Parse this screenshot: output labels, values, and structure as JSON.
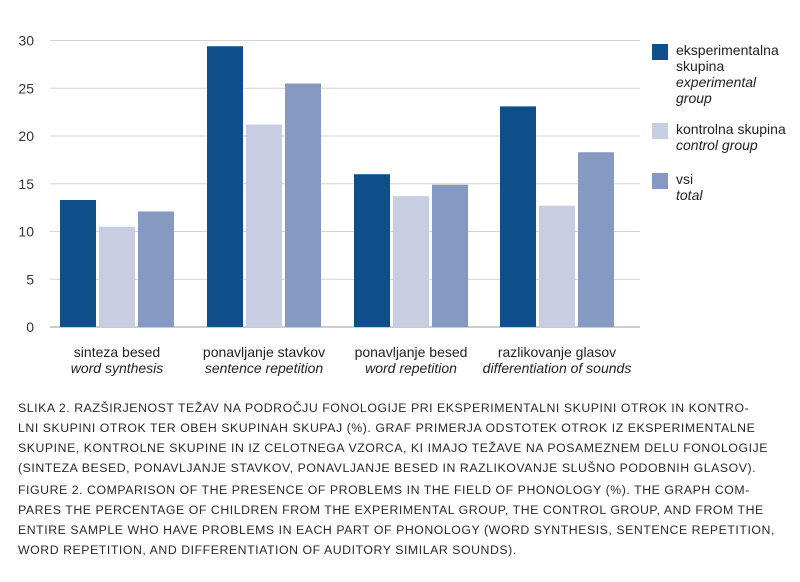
{
  "chart_data": {
    "type": "bar",
    "categories": [
      {
        "sl": "sinteza besed",
        "en": "word synthesis"
      },
      {
        "sl": "ponavljanje stavkov",
        "en": "sentence repetition"
      },
      {
        "sl": "ponavljanje besed",
        "en": "word repetition"
      },
      {
        "sl": "razlikovanje glasov",
        "en": "differentiation of sounds"
      }
    ],
    "series": [
      {
        "name_lines": [
          "eksperimentalna",
          "skupina"
        ],
        "name_en_lines": [
          "experimental",
          "group"
        ],
        "color": "#0e4f8a",
        "values": [
          13.3,
          29.4,
          16.0,
          23.1
        ]
      },
      {
        "name_lines": [
          "kontrolna skupina"
        ],
        "name_en_lines": [
          "control group"
        ],
        "color": "#c7cee2",
        "values": [
          10.5,
          21.2,
          13.7,
          12.7
        ]
      },
      {
        "name_lines": [
          "vsi"
        ],
        "name_en_lines": [
          "total"
        ],
        "color": "#8599c3",
        "values": [
          12.1,
          25.5,
          14.9,
          18.3
        ]
      }
    ],
    "yticks": [
      0,
      5,
      10,
      15,
      20,
      25,
      30
    ],
    "ylim": [
      0,
      32
    ],
    "grid": true,
    "legend_position": "right"
  },
  "caption": {
    "sl_lines": [
      "SLIKA 2. RAZŠIRJENOST TEŽAV NA PODROČJU FONOLOGIJE PRI EKSPERIMENTALNI SKUPINI OTROK IN KONTRO-",
      "LNI SKUPINI OTROK TER OBEH SKUPINAH SKUPAJ (%). GRAF PRIMERJA ODSTOTEK OTROK IZ EKSPERIMENTALNE",
      "SKUPINE, KONTROLNE SKUPINE IN IZ CELOTNEGA VZORCA, KI IMAJO TEŽAVE NA POSAMEZNEM DELU FONOLOGIJE",
      "(SINTEZA BESED, PONAVLJANJE STAVKOV, PONAVLJANJE BESED IN RAZLIKOVANJE SLUŠNO PODOBNIH GLASOV)."
    ],
    "en_lines": [
      "FIGURE 2. COMPARISON OF THE PRESENCE OF PROBLEMS IN THE FIELD OF PHONOLOGY (%). THE GRAPH COM-",
      "PARES THE PERCENTAGE OF CHILDREN FROM THE EXPERIMENTAL GROUP, THE CONTROL GROUP, AND FROM THE",
      "ENTIRE SAMPLE WHO HAVE PROBLEMS IN EACH PART OF PHONOLOGY (WORD SYNTHESIS, SENTENCE REPETITION,",
      "WORD REPETITION, AND DIFFERENTIATION OF AUDITORY SIMILAR SOUNDS)."
    ]
  }
}
